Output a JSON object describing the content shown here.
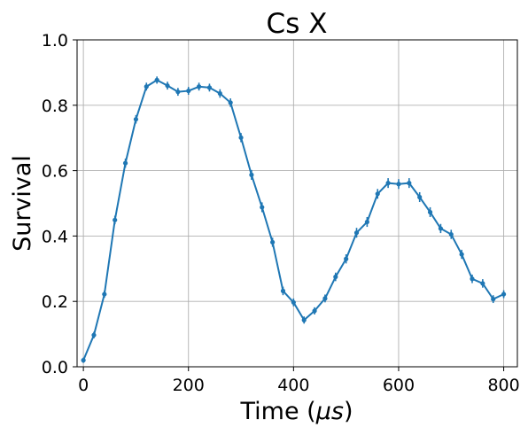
{
  "chart_data": {
    "type": "line",
    "title": "Cs X",
    "xlabel_prefix": "Time (",
    "xlabel_symbol": "μs",
    "xlabel_suffix": ")",
    "ylabel": "Survival",
    "xlim": [
      -12,
      826
    ],
    "ylim": [
      0.0,
      1.0
    ],
    "xticks": [
      0,
      200,
      400,
      600,
      800
    ],
    "yticks": [
      0.0,
      0.2,
      0.4,
      0.6,
      0.8,
      1.0
    ],
    "xtick_labels": [
      "0",
      "200",
      "400",
      "600",
      "800"
    ],
    "ytick_labels": [
      "0.0",
      "0.2",
      "0.4",
      "0.6",
      "0.8",
      "1.0"
    ],
    "grid": true,
    "color": "#1f77b4",
    "series": [
      {
        "name": "Survival",
        "x": [
          0,
          20,
          40,
          60,
          80,
          100,
          120,
          140,
          160,
          180,
          200,
          220,
          240,
          260,
          280,
          300,
          320,
          340,
          360,
          380,
          400,
          420,
          440,
          460,
          480,
          500,
          520,
          540,
          560,
          580,
          600,
          620,
          640,
          660,
          680,
          700,
          720,
          740,
          760,
          780,
          800
        ],
        "y": [
          0.02,
          0.097,
          0.222,
          0.449,
          0.623,
          0.757,
          0.857,
          0.877,
          0.86,
          0.841,
          0.844,
          0.857,
          0.854,
          0.836,
          0.808,
          0.701,
          0.587,
          0.488,
          0.381,
          0.232,
          0.197,
          0.143,
          0.171,
          0.209,
          0.275,
          0.33,
          0.41,
          0.443,
          0.529,
          0.562,
          0.559,
          0.562,
          0.519,
          0.473,
          0.423,
          0.405,
          0.344,
          0.269,
          0.255,
          0.207,
          0.222
        ],
        "err": [
          0.008,
          0.01,
          0.011,
          0.013,
          0.014,
          0.013,
          0.012,
          0.011,
          0.012,
          0.012,
          0.012,
          0.012,
          0.012,
          0.013,
          0.013,
          0.014,
          0.015,
          0.015,
          0.014,
          0.013,
          0.012,
          0.011,
          0.011,
          0.012,
          0.013,
          0.014,
          0.015,
          0.015,
          0.015,
          0.015,
          0.015,
          0.015,
          0.015,
          0.015,
          0.014,
          0.014,
          0.014,
          0.013,
          0.013,
          0.012,
          0.012
        ]
      }
    ]
  }
}
